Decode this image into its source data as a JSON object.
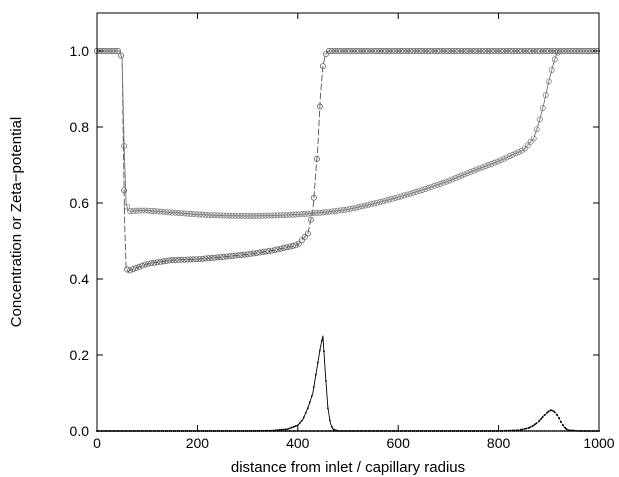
{
  "chart_data": {
    "type": "line",
    "title": "",
    "xlabel": "distance from inlet / capillary radius",
    "ylabel": "Concentration or Zeta−potential",
    "xlim": [
      0,
      1000
    ],
    "ylim": [
      0,
      1.1
    ],
    "xticks": [
      0,
      200,
      400,
      600,
      800,
      1000
    ],
    "yticks": [
      0.0,
      0.2,
      0.4,
      0.6,
      0.8,
      1.0
    ],
    "xtick_labels": [
      "0",
      "200",
      "400",
      "600",
      "800",
      "1000"
    ],
    "ytick_labels": [
      "0.0",
      "0.2",
      "0.4",
      "0.6",
      "0.8",
      "1.0"
    ],
    "grid": false,
    "series": [
      {
        "marker": "circle",
        "line": "dashed",
        "color": "#555555",
        "x": [
          0,
          45,
          50,
          52,
          55,
          58,
          62,
          70,
          80,
          100,
          150,
          200,
          250,
          300,
          350,
          400,
          420,
          430,
          440,
          445,
          450,
          455,
          460,
          470,
          500,
          600,
          700,
          800,
          900,
          1000
        ],
        "y": [
          1.0,
          1.0,
          0.98,
          0.8,
          0.55,
          0.43,
          0.42,
          0.425,
          0.43,
          0.44,
          0.45,
          0.452,
          0.458,
          0.465,
          0.475,
          0.49,
          0.52,
          0.58,
          0.75,
          0.88,
          0.96,
          0.99,
          1.0,
          1.0,
          1.0,
          1.0,
          1.0,
          1.0,
          1.0,
          1.0
        ]
      },
      {
        "marker": "circle",
        "line": "solid",
        "color": "#777777",
        "x": [
          0,
          45,
          50,
          54,
          58,
          62,
          70,
          80,
          100,
          150,
          200,
          250,
          300,
          350,
          400,
          450,
          500,
          550,
          600,
          650,
          700,
          750,
          800,
          850,
          870,
          880,
          890,
          900,
          910,
          915,
          920,
          925,
          950,
          1000
        ],
        "y": [
          1.0,
          1.0,
          0.98,
          0.75,
          0.6,
          0.58,
          0.578,
          0.58,
          0.58,
          0.575,
          0.57,
          0.567,
          0.566,
          0.567,
          0.57,
          0.575,
          0.583,
          0.598,
          0.615,
          0.635,
          0.658,
          0.685,
          0.71,
          0.74,
          0.77,
          0.81,
          0.86,
          0.92,
          0.97,
          0.99,
          1.0,
          1.0,
          1.0,
          1.0
        ]
      },
      {
        "marker": "dot",
        "line": "solid",
        "color": "#000000",
        "x": [
          0,
          100,
          200,
          300,
          350,
          380,
          400,
          410,
          420,
          430,
          435,
          440,
          445,
          450,
          455,
          460,
          465,
          470,
          480,
          500,
          600,
          700,
          800,
          900,
          1000
        ],
        "y": [
          0.0,
          0.0,
          0.0,
          0.0,
          0.001,
          0.005,
          0.015,
          0.03,
          0.06,
          0.1,
          0.14,
          0.18,
          0.22,
          0.25,
          0.15,
          0.06,
          0.02,
          0.005,
          0.0,
          0.0,
          0.0,
          0.0,
          0.0,
          0.0,
          0.0
        ]
      },
      {
        "marker": "dot",
        "line": "dotted",
        "color": "#000000",
        "x": [
          0,
          100,
          200,
          300,
          400,
          500,
          600,
          700,
          800,
          840,
          860,
          870,
          880,
          890,
          900,
          905,
          910,
          915,
          920,
          925,
          930,
          935,
          940,
          960,
          1000
        ],
        "y": [
          0.0,
          0.0,
          0.0,
          0.0,
          0.0,
          0.0,
          0.0,
          0.0,
          0.0,
          0.002,
          0.008,
          0.015,
          0.025,
          0.04,
          0.052,
          0.055,
          0.052,
          0.045,
          0.035,
          0.022,
          0.012,
          0.005,
          0.002,
          0.0,
          0.0
        ]
      }
    ]
  }
}
